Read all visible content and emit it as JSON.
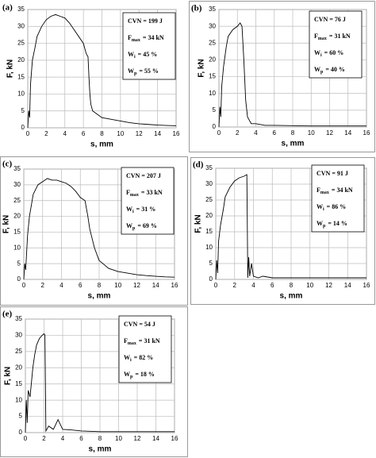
{
  "chart_data": [
    {
      "type": "line",
      "panel_label": "(a)",
      "x_label": "s, mm",
      "y_label": "F, kN",
      "color": "#000000",
      "grid": true,
      "xlim": [
        0,
        16
      ],
      "xticks": [
        0,
        2,
        4,
        6,
        8,
        10,
        12,
        14,
        16
      ],
      "ylim": [
        0,
        35
      ],
      "yticks": [
        0,
        5,
        10,
        15,
        20,
        25,
        30,
        35
      ],
      "legend": [
        {
          "text": "CVN = 199 J"
        },
        {
          "text": "F",
          "sub": "max",
          "after": "= 34 kN"
        },
        {
          "text": "W",
          "sub": "i",
          "after": "= 45 %"
        },
        {
          "text": "W",
          "sub": "p",
          "after": "= 55 %"
        }
      ],
      "x": [
        0,
        0.1,
        0.2,
        0.3,
        0.5,
        0.8,
        1,
        1.5,
        2,
        2.5,
        3,
        3.5,
        4,
        4.5,
        5,
        5.5,
        6,
        6.3,
        6.5,
        6.6,
        6.7,
        6.8,
        7,
        7.5,
        8,
        9,
        10,
        11,
        12,
        13,
        14,
        15,
        16
      ],
      "values": [
        0,
        5,
        3,
        13,
        20,
        24,
        27,
        30,
        32,
        33,
        33.5,
        33,
        32.5,
        31,
        29,
        27,
        25,
        22,
        21,
        15,
        10,
        7,
        5,
        4,
        3,
        2.5,
        2,
        1.5,
        1.2,
        1,
        0.8,
        0.7,
        0.6
      ]
    },
    {
      "type": "line",
      "panel_label": "(b)",
      "x_label": "s, mm",
      "y_label": "F, kN",
      "color": "#000000",
      "grid": true,
      "xlim": [
        0,
        16
      ],
      "xticks": [
        0,
        2,
        4,
        6,
        8,
        10,
        12,
        14,
        16
      ],
      "ylim": [
        0,
        35
      ],
      "yticks": [
        0,
        5,
        10,
        15,
        20,
        25,
        30,
        35
      ],
      "legend": [
        {
          "text": "CVN = 76 J"
        },
        {
          "text": "F",
          "sub": "max",
          "after": "= 31 kN"
        },
        {
          "text": "W",
          "sub": "i",
          "after": "= 60 %"
        },
        {
          "text": "W",
          "sub": "p",
          "after": "= 40 %"
        }
      ],
      "x": [
        0,
        0.1,
        0.2,
        0.3,
        0.5,
        0.8,
        1,
        1.5,
        2,
        2.3,
        2.5,
        2.7,
        2.9,
        3.1,
        3.3,
        3.5,
        4,
        5,
        6,
        8,
        10,
        12,
        14,
        16
      ],
      "values": [
        0,
        6,
        3,
        12,
        18,
        24,
        27,
        29,
        30,
        31,
        30,
        20,
        8,
        3,
        2,
        1,
        1,
        0.5,
        0.5,
        0.4,
        0.3,
        0.3,
        0.3,
        0.3
      ]
    },
    {
      "type": "line",
      "panel_label": "(c)",
      "x_label": "s, mm",
      "y_label": "F, kN",
      "color": "#000000",
      "grid": true,
      "xlim": [
        0,
        16
      ],
      "xticks": [
        0,
        2,
        4,
        6,
        8,
        10,
        12,
        14,
        16
      ],
      "ylim": [
        0,
        35
      ],
      "yticks": [
        0,
        5,
        10,
        15,
        20,
        25,
        30,
        35
      ],
      "legend": [
        {
          "text": "CVN = 207 J"
        },
        {
          "text": "F",
          "sub": "max",
          "after": "= 33 kN"
        },
        {
          "text": "W",
          "sub": "i",
          "after": "= 31 %"
        },
        {
          "text": "W",
          "sub": "p",
          "after": "= 69 %"
        }
      ],
      "x": [
        0,
        0.1,
        0.2,
        0.4,
        0.6,
        1,
        1.5,
        2,
        2.5,
        3,
        3.5,
        4,
        4.5,
        5,
        5.5,
        6,
        6.5,
        6.8,
        7,
        7.5,
        8,
        9,
        10,
        11,
        12,
        13,
        14,
        15,
        16
      ],
      "values": [
        0,
        5,
        3,
        14,
        20,
        27,
        30,
        31,
        32,
        31.5,
        31.5,
        31,
        30.5,
        29.5,
        28,
        26,
        25,
        20,
        16,
        10,
        6,
        3.5,
        2.5,
        2,
        1.5,
        1.2,
        1,
        0.8,
        0.7
      ]
    },
    {
      "type": "line",
      "panel_label": "(d)",
      "x_label": "s, mm",
      "y_label": "F, kN",
      "color": "#000000",
      "grid": true,
      "xlim": [
        0,
        16
      ],
      "xticks": [
        0,
        2,
        4,
        6,
        8,
        10,
        12,
        14,
        16
      ],
      "ylim": [
        0,
        35
      ],
      "yticks": [
        0,
        5,
        10,
        15,
        20,
        25,
        30,
        35
      ],
      "legend": [
        {
          "text": "CVN = 91 J"
        },
        {
          "text": "F",
          "sub": "max",
          "after": "= 34 kN"
        },
        {
          "text": "W",
          "sub": "i",
          "after": "= 86 %"
        },
        {
          "text": "W",
          "sub": "p",
          "after": "= 14 %"
        }
      ],
      "x": [
        0,
        0.1,
        0.2,
        0.3,
        0.5,
        0.8,
        1,
        1.5,
        2,
        2.5,
        3,
        3.3,
        3.4,
        3.5,
        3.6,
        3.8,
        4,
        4.5,
        5,
        6,
        8,
        10,
        12,
        14,
        16
      ],
      "values": [
        0,
        6,
        2,
        12,
        17,
        22,
        26,
        29,
        31,
        32,
        32.5,
        33,
        0.5,
        7,
        1,
        5,
        1,
        0.5,
        1,
        0.5,
        0.5,
        0.5,
        0.5,
        0.5,
        0.5
      ]
    },
    {
      "type": "line",
      "panel_label": "(e)",
      "x_label": "s, mm",
      "y_label": "F, kN",
      "color": "#000000",
      "grid": true,
      "xlim": [
        0,
        16
      ],
      "xticks": [
        0,
        2,
        4,
        6,
        8,
        10,
        12,
        14,
        16
      ],
      "ylim": [
        0,
        35
      ],
      "yticks": [
        0,
        5,
        10,
        15,
        20,
        25,
        30,
        35
      ],
      "legend": [
        {
          "text": "CVN = 54 J"
        },
        {
          "text": "F",
          "sub": "max",
          "after": "= 31 kN"
        },
        {
          "text": "W",
          "sub": "i",
          "after": "= 82 %"
        },
        {
          "text": "W",
          "sub": "p",
          "after": "= 18 %"
        }
      ],
      "x": [
        0,
        0.1,
        0.2,
        0.3,
        0.5,
        0.8,
        1,
        1.2,
        1.5,
        1.8,
        2,
        2.1,
        2.2,
        2.5,
        3,
        3.5,
        4,
        5,
        6,
        8,
        10,
        12,
        14,
        16
      ],
      "values": [
        0,
        10,
        3,
        13,
        11,
        20,
        24,
        27,
        29,
        30,
        30.5,
        30,
        0.5,
        2,
        1,
        4,
        1,
        0.8,
        0.5,
        0.3,
        0.3,
        0.3,
        0.3,
        0.3
      ]
    }
  ]
}
